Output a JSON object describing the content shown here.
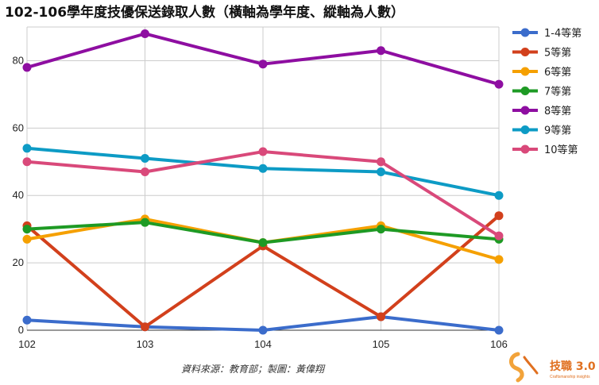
{
  "chart_data": {
    "type": "line",
    "title": "102-106學年度技優保送錄取人數（橫軸為學年度、縱軸為人數）",
    "xlabel": "",
    "ylabel": "",
    "categories": [
      "102",
      "103",
      "104",
      "105",
      "106"
    ],
    "ylim": [
      0,
      90
    ],
    "yticks": [
      0,
      20,
      40,
      60,
      80
    ],
    "grid": true,
    "legend_position": "right",
    "series": [
      {
        "name": "1-4等第",
        "color": "#3b6ccb",
        "values": [
          3,
          1,
          0,
          4,
          0
        ]
      },
      {
        "name": "5等第",
        "color": "#d2401c",
        "values": [
          31,
          1,
          25,
          4,
          34
        ]
      },
      {
        "name": "6等第",
        "color": "#f5a000",
        "values": [
          27,
          33,
          26,
          31,
          21
        ]
      },
      {
        "name": "7等第",
        "color": "#1e9a24",
        "values": [
          30,
          32,
          26,
          30,
          27
        ]
      },
      {
        "name": "8等第",
        "color": "#8e0ea1",
        "values": [
          78,
          88,
          79,
          83,
          73
        ]
      },
      {
        "name": "9等第",
        "color": "#0d9bc5",
        "values": [
          54,
          51,
          48,
          47,
          40
        ]
      },
      {
        "name": "10等第",
        "color": "#d9497a",
        "values": [
          50,
          47,
          53,
          50,
          28
        ]
      }
    ],
    "source": "資料來源：教育部；製圖：黃偉翔"
  },
  "brand": {
    "name": "技職 3.0",
    "tagline": "Craftsmanship insights",
    "icon": "brand-logo-icon",
    "color": "#e07020"
  }
}
